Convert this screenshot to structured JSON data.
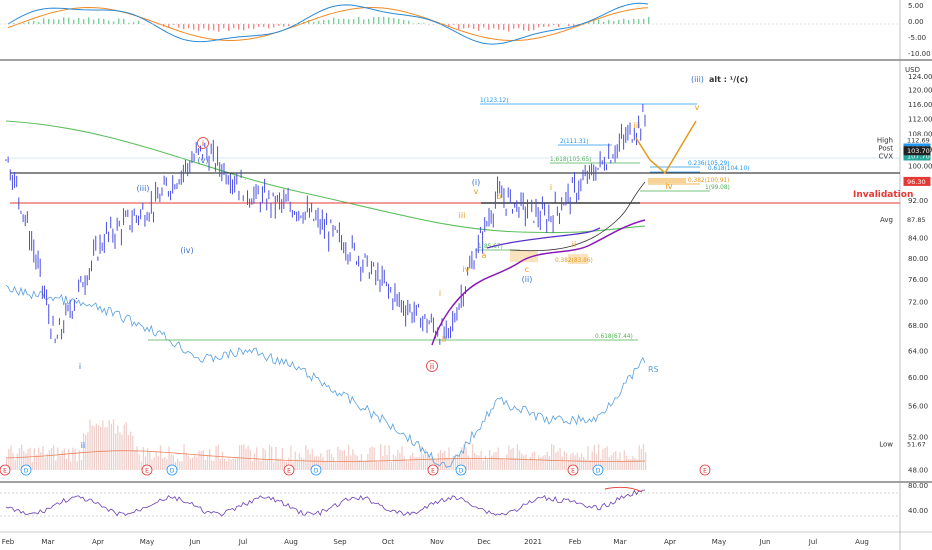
{
  "colors": {
    "price": "#4a4ee0",
    "rs": "#5aa0dc",
    "sma": "#5cbf5c",
    "vwap": "#8a1ab5",
    "wave_blue": "#3a6fc9",
    "wave_orange": "#e69a1a",
    "wave_red": "#e03333",
    "fib_green": "#4caf50",
    "fib_blue": "#2196f3",
    "invalid": "#e53935",
    "macd_line": "#2a8ad6",
    "signal_line": "#f08a24",
    "rsi": "#6a3fb5"
  },
  "price_scale": {
    "labels": [
      "124.00",
      "120.00",
      "116.00",
      "112.00",
      "108.00",
      "104.00",
      "100.00",
      "96.00",
      "92.00",
      "88.00",
      "84.00",
      "80.00",
      "76.00",
      "72.00",
      "68.00",
      "64.00",
      "60.00",
      "56.00",
      "52.00",
      "48.00"
    ],
    "usd": "USD",
    "log_scale": true
  },
  "price_badges": [
    {
      "label": "High",
      "value": "112.69",
      "color": "#ffffff",
      "text": "#333333"
    },
    {
      "label": "Post",
      "value": "107.70",
      "color": "#2196f3",
      "text": "#ffffff"
    },
    {
      "label": "CVX",
      "value": "107.70",
      "color": "#26a69a",
      "text": "#ffffff"
    },
    {
      "label": "",
      "value": "103.70",
      "color": "#222222",
      "text": "#ffffff"
    },
    {
      "label": "",
      "value": "96.30",
      "color": "#e53935",
      "text": "#ffffff"
    },
    {
      "label": "Avg",
      "value": "87.85",
      "color": "#ffffff",
      "text": "#333333"
    },
    {
      "label": "Low",
      "value": "51.67",
      "color": "#ffffff",
      "text": "#333333"
    }
  ],
  "macd_scale": {
    "labels": [
      "5.00",
      "0.00",
      "-5.00",
      "-10.00"
    ]
  },
  "rsi_scale": {
    "labels": [
      "80.00",
      "40.00"
    ]
  },
  "time_axis": {
    "labels": [
      "Feb",
      "Mar",
      "Apr",
      "May",
      "Jun",
      "Jul",
      "Aug",
      "Sep",
      "Oct",
      "Nov",
      "Dec",
      "2021",
      "Feb",
      "Mar",
      "Apr",
      "May",
      "Jun",
      "Jul",
      "Aug"
    ]
  },
  "annotations": {
    "title_iii": "(iii)",
    "title_alt": "alt : ¹/(c)",
    "fib_1": "1(123.12)",
    "fib_2": "2(111.31)",
    "fib_1618": "1.618(105.65)",
    "fib_0236": "0.236(105.29)",
    "fib_0382": "0.382(100.91)",
    "fib_0618b": "0.618(104.10)",
    "fib_1b": "1(99.08)",
    "fib_0618": "0.618(67.44)",
    "fib_1_85": "1(85.67)",
    "fib_0382_low": "0.382(83.86)",
    "invalidation": "Invalidation",
    "rs": "RS"
  },
  "wave_labels": {
    "i_circle": "i",
    "ii_circle": "ii",
    "v_paren": "(v)",
    "iii_paren": "(iii)",
    "iv_paren": "(iv)",
    "i_paren": "(i)",
    "ii_paren": "(ii)",
    "i_small": "i",
    "ii_small": "ii",
    "iii_small": "iii",
    "iv_small": "iv",
    "v_small": "v",
    "a": "a",
    "b": "b",
    "c": "c",
    "i_orange": "i",
    "ii_orange": "ii",
    "iii_orange": "iii",
    "iv_orange": "iv",
    "v_orange": "v",
    "i_left": "i",
    "ii_left": "ii"
  },
  "events": {
    "E": "E",
    "D": "D"
  },
  "chart_data": {
    "type": "line",
    "title": "",
    "series": [
      {
        "name": "",
        "x": [
          "2020-02",
          "2020-03",
          "2020-04",
          "2020-05",
          "2020-06",
          "2020-07",
          "2020-08",
          "2020-09",
          "2020-10",
          "2020-11",
          "2020-12",
          "2021-01",
          "2021-02",
          "2021-03"
        ],
        "values": [
          103,
          65,
          84,
          91,
          104,
          93,
          90,
          82,
          72,
          66,
          93,
          88,
          99,
          112
        ]
      }
    ],
    "ylim": [
      48,
      126
    ],
    "rs_line_desc": "relative strength line",
    "sma_desc": "moving average",
    "vwap_desc": "anchored VWAP"
  }
}
